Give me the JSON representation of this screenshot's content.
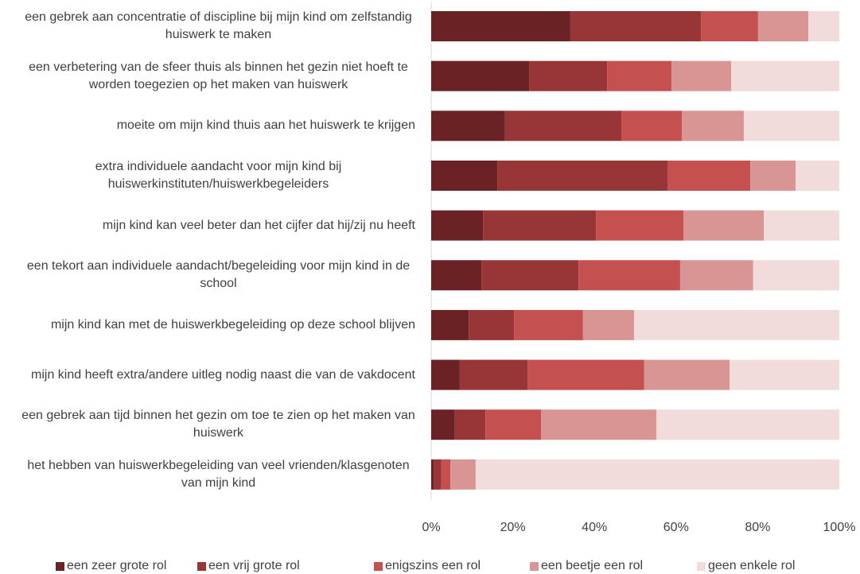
{
  "chart_data": {
    "type": "bar",
    "orientation": "horizontal",
    "stacked": true,
    "categories": [
      "een gebrek aan concentratie of discipline bij mijn kind om zelfstandig huiswerk te maken",
      "een verbetering van de sfeer thuis als binnen het gezin niet hoeft te worden toegezien op het maken van huiswerk",
      "moeite om mijn kind thuis aan het huiswerk te krijgen",
      "extra individuele aandacht voor mijn kind bij huiswerkinstituten/huiswerkbegeleiders",
      "mijn kind kan veel beter dan het cijfer dat hij/zij nu heeft",
      "een tekort aan individuele aandacht/begeleiding voor mijn kind in de school",
      "mijn kind kan met de huiswerkbegeleiding op deze school blijven",
      "mijn kind heeft extra/andere uitleg nodig naast die van de vakdocent",
      "een gebrek aan tijd binnen het gezin om toe te zien op het maken van huiswerk",
      "het hebben van huiswerkbegeleiding van veel vrienden/klasgenoten van mijn kind"
    ],
    "series": [
      {
        "name": "een zeer grote rol",
        "color": "#6b2224",
        "values": [
          34.1,
          24.0,
          18.1,
          16.2,
          12.7,
          12.3,
          9.2,
          7.0,
          5.8,
          0.6
        ]
      },
      {
        "name": "een vrij grote rol",
        "color": "#983537",
        "values": [
          32.0,
          19.1,
          28.5,
          41.7,
          27.7,
          23.8,
          11.1,
          16.6,
          7.5,
          1.9
        ]
      },
      {
        "name": "enigszins een rol",
        "color": "#c4504f",
        "values": [
          14.0,
          15.8,
          14.8,
          20.3,
          21.4,
          24.9,
          16.9,
          28.6,
          13.6,
          2.2
        ]
      },
      {
        "name": "een beetje een rol",
        "color": "#d99594",
        "values": [
          12.3,
          14.6,
          15.2,
          11.1,
          19.7,
          17.9,
          12.5,
          20.9,
          28.3,
          6.2
        ]
      },
      {
        "name": "geen enkele rol",
        "color": "#f2dcdb",
        "values": [
          7.6,
          26.5,
          23.4,
          10.7,
          18.5,
          21.1,
          50.3,
          26.9,
          44.8,
          89.1
        ]
      }
    ],
    "xlim": [
      0,
      100
    ],
    "xticks": [
      {
        "value": 0,
        "label": "0%"
      },
      {
        "value": 20,
        "label": "20%"
      },
      {
        "value": 40,
        "label": "40%"
      },
      {
        "value": 60,
        "label": "60%"
      },
      {
        "value": 80,
        "label": "80%"
      },
      {
        "value": 100,
        "label": "100%"
      }
    ],
    "legend": "bottom"
  }
}
